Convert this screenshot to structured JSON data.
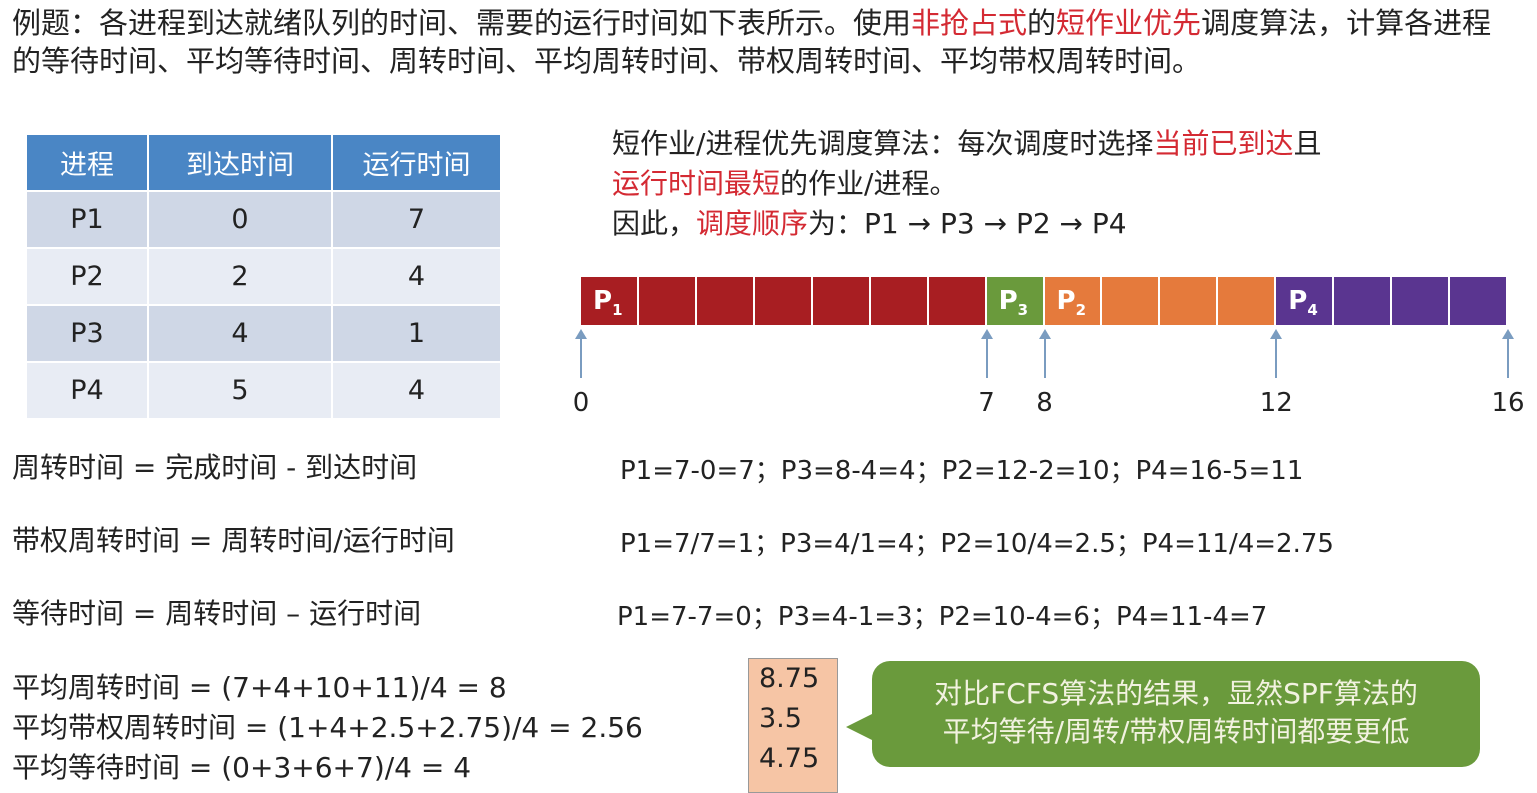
{
  "title": {
    "part1": "例题：各进程到达就绪队列的时间、需要的运行时间如下表所示。使用",
    "red1": "非抢占式",
    "part2": "的",
    "red2": "短作业优先",
    "part3": "调度算法，计算各进程的等待时间、平均等待时间、周转时间、平均周转时间、带权周转时间、平均带权周转时间。"
  },
  "table": {
    "headers": [
      "进程",
      "到达时间",
      "运行时间"
    ],
    "rows": [
      [
        "P1",
        "0",
        "7"
      ],
      [
        "P2",
        "2",
        "4"
      ],
      [
        "P3",
        "4",
        "1"
      ],
      [
        "P4",
        "5",
        "4"
      ]
    ]
  },
  "desc": {
    "a": "短作业/进程优先调度算法：每次调度时选择",
    "red_a": "当前已到达",
    "b": "且",
    "red_b": "运行时间最短",
    "c": "的作业/进程。",
    "d": "因此，",
    "red_d": "调度顺序",
    "e": "为：P1 → P3 → P2 → P4"
  },
  "gantt": {
    "segments": [
      {
        "label": "P",
        "sub": "1",
        "start": 0,
        "end": 7,
        "color": "#a81e22"
      },
      {
        "label": "P",
        "sub": "3",
        "start": 7,
        "end": 8,
        "color": "#6a9a3c"
      },
      {
        "label": "P",
        "sub": "2",
        "start": 8,
        "end": 12,
        "color": "#e57a3c"
      },
      {
        "label": "P",
        "sub": "4",
        "start": 12,
        "end": 16,
        "color": "#5a3590"
      }
    ],
    "ticks": [
      "0",
      "7",
      "8",
      "12",
      "16"
    ]
  },
  "formulas": [
    {
      "label": "周转时间 = 完成时间 - 到达时间",
      "calc": "P1=7-0=7；P3=8-4=4；P2=12-2=10；P4=16-5=11"
    },
    {
      "label": "带权周转时间 = 周转时间/运行时间",
      "calc": "P1=7/7=1；P3=4/1=4；P2=10/4=2.5；P4=11/4=2.75"
    },
    {
      "label": "等待时间 = 周转时间 – 运行时间",
      "calc": "P1=7-7=0；P3=4-1=3；P2=10-4=6；P4=11-4=7"
    }
  ],
  "averages": [
    "平均周转时间 = (7+4+10+11)/4 = 8",
    "平均带权周转时间 = (1+4+2.5+2.75)/4 = 2.56",
    "平均等待时间 = (0+3+6+7)/4 = 4"
  ],
  "fcfs_values": [
    "8.75",
    "3.5",
    "4.75"
  ],
  "bubble": {
    "line1": "对比FCFS算法的结果，显然SPF算法的",
    "line2": "平均等待/周转/带权周转时间都要更低"
  }
}
